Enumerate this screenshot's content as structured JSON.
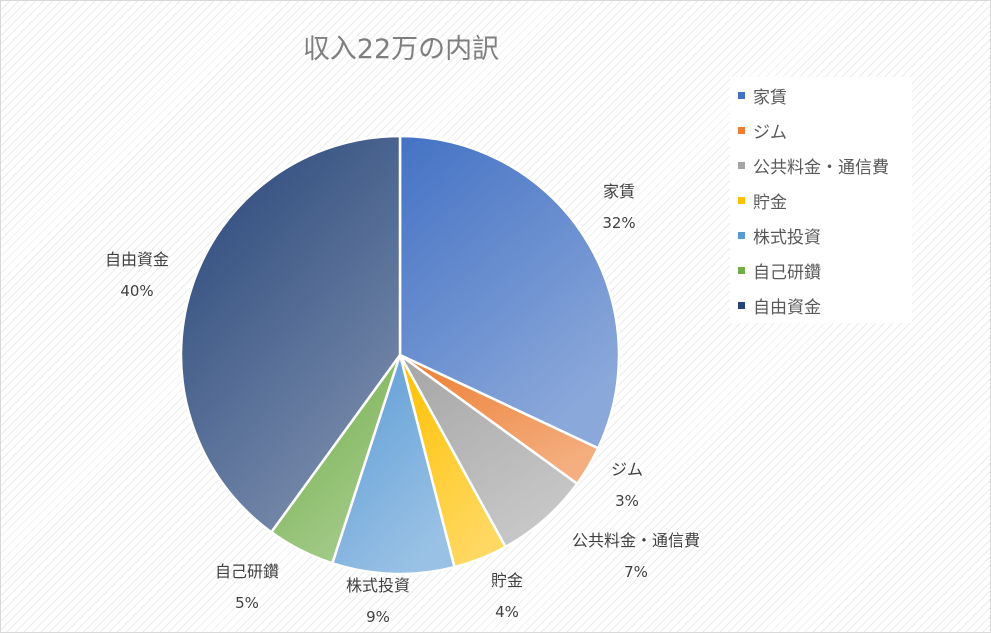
{
  "chart_data": {
    "type": "pie",
    "title": "収入22万の内訳",
    "categories": [
      "家賃",
      "ジム",
      "公共料金・通信費",
      "貯金",
      "株式投資",
      "自己研鑽",
      "自由資金"
    ],
    "values": [
      32,
      3,
      7,
      4,
      9,
      5,
      40
    ],
    "data_labels": [
      "32%",
      "3%",
      "7%",
      "4%",
      "9%",
      "5%",
      "40%"
    ],
    "colors": [
      "#4472c4",
      "#ed7d31",
      "#a5a5a5",
      "#ffc000",
      "#5b9bd5",
      "#70ad47",
      "#264478"
    ],
    "legend_position": "right"
  }
}
